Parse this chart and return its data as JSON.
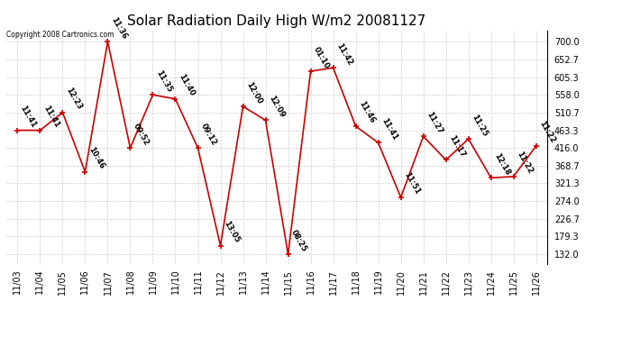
{
  "title": "Solar Radiation Daily High W/m2 20081127",
  "copyright": "Copyright 2008 Cartronics.com",
  "dates": [
    "11/03",
    "11/04",
    "11/05",
    "11/06",
    "11/07",
    "11/08",
    "11/09",
    "11/10",
    "11/11",
    "11/12",
    "11/13",
    "11/14",
    "11/15",
    "11/16",
    "11/17",
    "11/18",
    "11/19",
    "11/20",
    "11/21",
    "11/22",
    "11/23",
    "11/24",
    "11/25",
    "11/26"
  ],
  "values": [
    463.3,
    463.3,
    510.7,
    352.0,
    700.0,
    416.0,
    558.0,
    547.0,
    416.0,
    155.0,
    527.0,
    490.0,
    132.0,
    621.0,
    630.0,
    474.0,
    430.0,
    284.0,
    447.0,
    384.0,
    440.0,
    336.0,
    340.0,
    421.3
  ],
  "labels": [
    "11:41",
    "11:41",
    "12:23",
    "10:46",
    "11:36",
    "09:52",
    "11:35",
    "11:40",
    "09:12",
    "13:05",
    "12:00",
    "12:09",
    "08:25",
    "01:10",
    "11:42",
    "11:46",
    "11:41",
    "11:51",
    "11:27",
    "11:17",
    "11:25",
    "12:18",
    "11:22",
    "11:22"
  ],
  "line_color": "#cc0000",
  "marker_color": "#cc0000",
  "grid_color": "#cccccc",
  "background_color": "#ffffff",
  "yticks": [
    132.0,
    179.3,
    226.7,
    274.0,
    321.3,
    368.7,
    416.0,
    463.3,
    510.7,
    558.0,
    605.3,
    652.7,
    700.0
  ],
  "ylim": [
    107,
    730
  ],
  "title_fontsize": 11,
  "label_fontsize": 6,
  "tick_fontsize": 7,
  "copyright_fontsize": 5.5
}
